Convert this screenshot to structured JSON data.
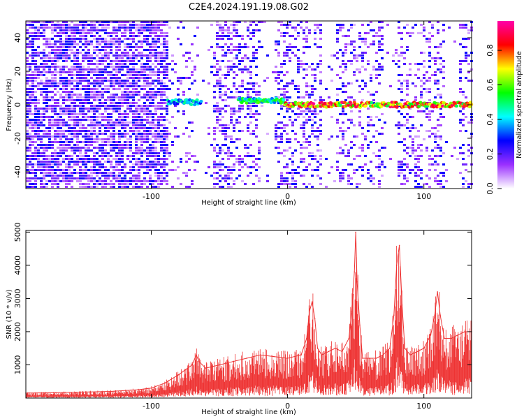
{
  "title": "C2E4.2024.191.19.08.G02",
  "colors": {
    "snr_line": "#ee3333",
    "spectrogram_background": "#ffffff",
    "colormap": [
      "#ffffff",
      "#9b30ff",
      "#0000ff",
      "#00ffff",
      "#00ff00",
      "#ffff00",
      "#ff0000",
      "#ff00aa"
    ]
  },
  "chart_data": [
    {
      "type": "heatmap",
      "title": "C2E4.2024.191.19.08.G02",
      "xlabel": "Height of straight line (km)",
      "ylabel": "Frequency (Hz)",
      "xlim": [
        -192,
        135
      ],
      "ylim": [
        -50,
        50
      ],
      "xticks": [
        -100,
        0,
        100
      ],
      "yticks": [
        -40,
        -20,
        0,
        20,
        40
      ],
      "grid": false,
      "colorbar": {
        "label": "Normalized spectral amplitude",
        "range": [
          0.0,
          0.97
        ],
        "ticks": [
          0.0,
          0.2,
          0.4,
          0.6,
          0.8
        ]
      },
      "features": [
        {
          "x_range": [
            -192,
            -88
          ],
          "description": "dense broadband noise",
          "amplitude": 0.2
        },
        {
          "x_range": [
            -88,
            -63
          ],
          "freq": 1.5,
          "amplitude": 0.45
        },
        {
          "x_range": [
            -36,
            -2
          ],
          "freq": 2.5,
          "amplitude": 0.55
        },
        {
          "x_range": [
            -2,
            135
          ],
          "freq": 0,
          "amplitude": 0.85
        }
      ]
    },
    {
      "type": "line",
      "xlabel": "Height of straight line (km)",
      "ylabel": "SNR (10 * v/v)",
      "xlim": [
        -192,
        135
      ],
      "ylim": [
        0,
        5050
      ],
      "xticks": [
        -100,
        0,
        100
      ],
      "yticks": [
        1000,
        2000,
        3000,
        4000,
        5000
      ],
      "grid": false,
      "series": [
        {
          "x": [
            -192,
            -170,
            -150,
            -130,
            -110,
            -100,
            -90,
            -80,
            -70,
            -67,
            -65,
            -60,
            -50,
            -40,
            -30,
            -20,
            -10,
            0,
            10,
            14,
            16,
            18,
            20,
            22,
            25,
            30,
            35,
            40,
            45,
            47,
            49,
            50,
            51,
            53,
            55,
            60,
            65,
            70,
            75,
            78,
            80,
            82,
            84,
            86,
            90,
            95,
            100,
            105,
            108,
            110,
            112,
            115,
            120,
            125,
            130,
            135
          ],
          "y": [
            150,
            160,
            180,
            200,
            250,
            300,
            450,
            700,
            1000,
            1300,
            1100,
            900,
            1000,
            1100,
            1200,
            1300,
            1250,
            1200,
            1300,
            1800,
            2600,
            2900,
            2400,
            1500,
            1300,
            1400,
            1500,
            1400,
            1800,
            2600,
            3800,
            5000,
            3500,
            2200,
            1200,
            1200,
            1200,
            1300,
            1500,
            2500,
            4000,
            4600,
            2800,
            1500,
            1300,
            1400,
            1500,
            1900,
            2500,
            3200,
            2500,
            1800,
            1800,
            1900,
            2000,
            2000
          ]
        }
      ]
    }
  ]
}
